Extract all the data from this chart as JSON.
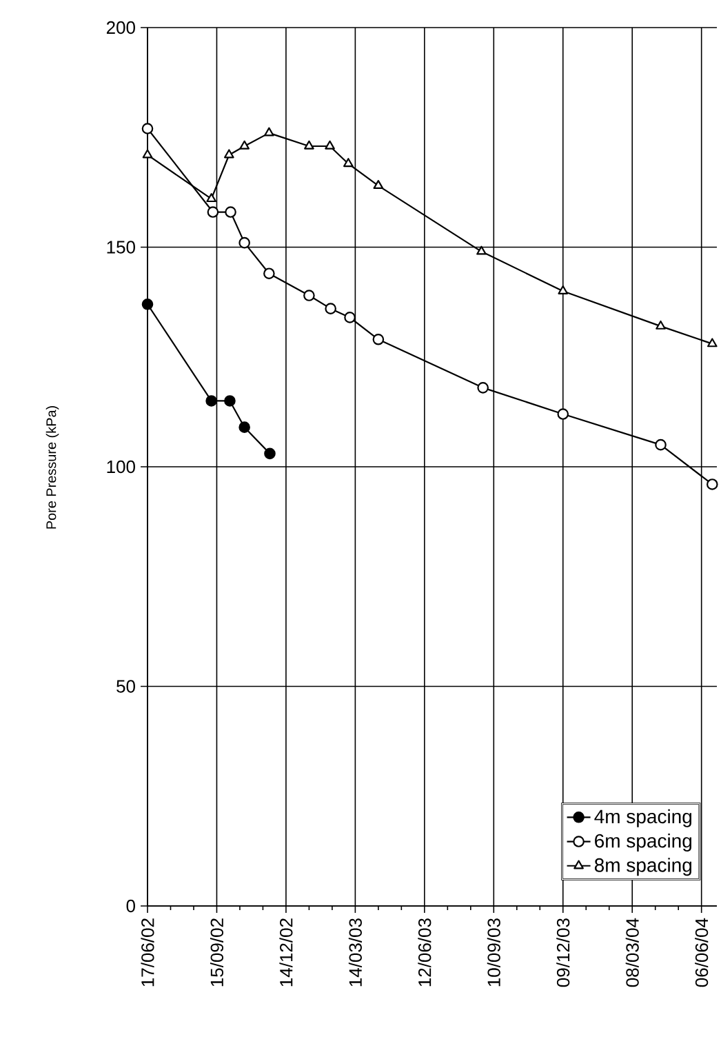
{
  "chart_data": {
    "type": "line",
    "ylabel": "Pore Pressure (kPa)",
    "xlim": [
      "2002-06-17",
      "2004-06-26"
    ],
    "xticks": [
      {
        "value": "2002-06-17",
        "label": "17/06/02"
      },
      {
        "value": "2002-09-15",
        "label": "15/09/02"
      },
      {
        "value": "2002-12-14",
        "label": "14/12/02"
      },
      {
        "value": "2003-03-14",
        "label": "14/03/03"
      },
      {
        "value": "2003-06-12",
        "label": "12/06/03"
      },
      {
        "value": "2003-09-10",
        "label": "10/09/03"
      },
      {
        "value": "2003-12-09",
        "label": "09/12/03"
      },
      {
        "value": "2004-03-08",
        "label": "08/03/04"
      },
      {
        "value": "2004-06-06",
        "label": "06/06/04"
      }
    ],
    "ylim": [
      0,
      200
    ],
    "yticks": [
      0,
      50,
      100,
      150,
      200
    ],
    "grid": true,
    "legend": "bottom right",
    "series": [
      {
        "name": "4m spacing",
        "color": "#000000",
        "marker": "circle",
        "x": [
          "2002-06-17",
          "2002-09-08",
          "2002-10-02",
          "2002-10-21",
          "2002-11-23"
        ],
        "values": [
          137,
          115,
          115,
          109,
          103
        ]
      },
      {
        "name": "6m spacing",
        "color": "#ffffff",
        "marker": "circle",
        "x": [
          "2002-06-17",
          "2002-09-10",
          "2002-10-03",
          "2002-10-21",
          "2002-11-22",
          "2003-01-13",
          "2003-02-10",
          "2003-03-07",
          "2003-04-13",
          "2003-08-27",
          "2003-12-09",
          "2004-04-14",
          "2004-06-20"
        ],
        "values": [
          177,
          158,
          158,
          151,
          144,
          139,
          136,
          134,
          129,
          118,
          112,
          105,
          96
        ]
      },
      {
        "name": "8m spacing",
        "color": "#ffffff",
        "marker": "triangle",
        "x": [
          "2002-06-17",
          "2002-09-08",
          "2002-10-01",
          "2002-10-21",
          "2002-11-22",
          "2003-01-13",
          "2003-02-09",
          "2003-03-05",
          "2003-04-13",
          "2003-08-25",
          "2003-12-09",
          "2004-04-14",
          "2004-06-20"
        ],
        "values": [
          171,
          161,
          171,
          173,
          176,
          173,
          173,
          169,
          164,
          149,
          140,
          132,
          128
        ]
      }
    ]
  }
}
